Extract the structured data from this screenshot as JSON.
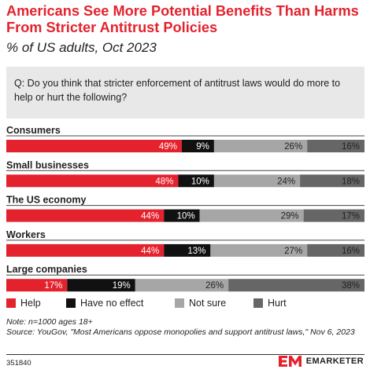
{
  "title": "Americans See More Potential Benefits Than Harms From Stricter Antitrust Policies",
  "subtitle": "% of US adults, Oct 2023",
  "question": "Q: Do you think that stricter enforcement of antitrust laws would do more to help or hurt the following?",
  "colors": {
    "Help": "#e4222e",
    "Have no effect": "#111111",
    "Not sure": "#a6a6a6",
    "Hurt": "#666666"
  },
  "chart_data": {
    "type": "bar",
    "orientation": "horizontal",
    "stacked": true,
    "unit": "%",
    "categories": [
      "Consumers",
      "Small businesses",
      "The US economy",
      "Workers",
      "Large companies"
    ],
    "series": [
      {
        "name": "Help",
        "values": [
          49,
          48,
          44,
          44,
          17
        ]
      },
      {
        "name": "Have no effect",
        "values": [
          9,
          10,
          10,
          13,
          19
        ]
      },
      {
        "name": "Not sure",
        "values": [
          26,
          24,
          29,
          27,
          26
        ]
      },
      {
        "name": "Hurt",
        "values": [
          16,
          18,
          17,
          16,
          38
        ]
      }
    ],
    "legend": [
      "Help",
      "Have no effect",
      "Not sure",
      "Hurt"
    ],
    "legend_position": "bottom",
    "grid": false
  },
  "note": "Note: n=1000 ages 18+",
  "source": "Source: YouGov, \"Most Americans oppose monopolies and support antitrust laws,\" Nov 6, 2023",
  "chart_id": "351840",
  "brand": "EMARKETER"
}
